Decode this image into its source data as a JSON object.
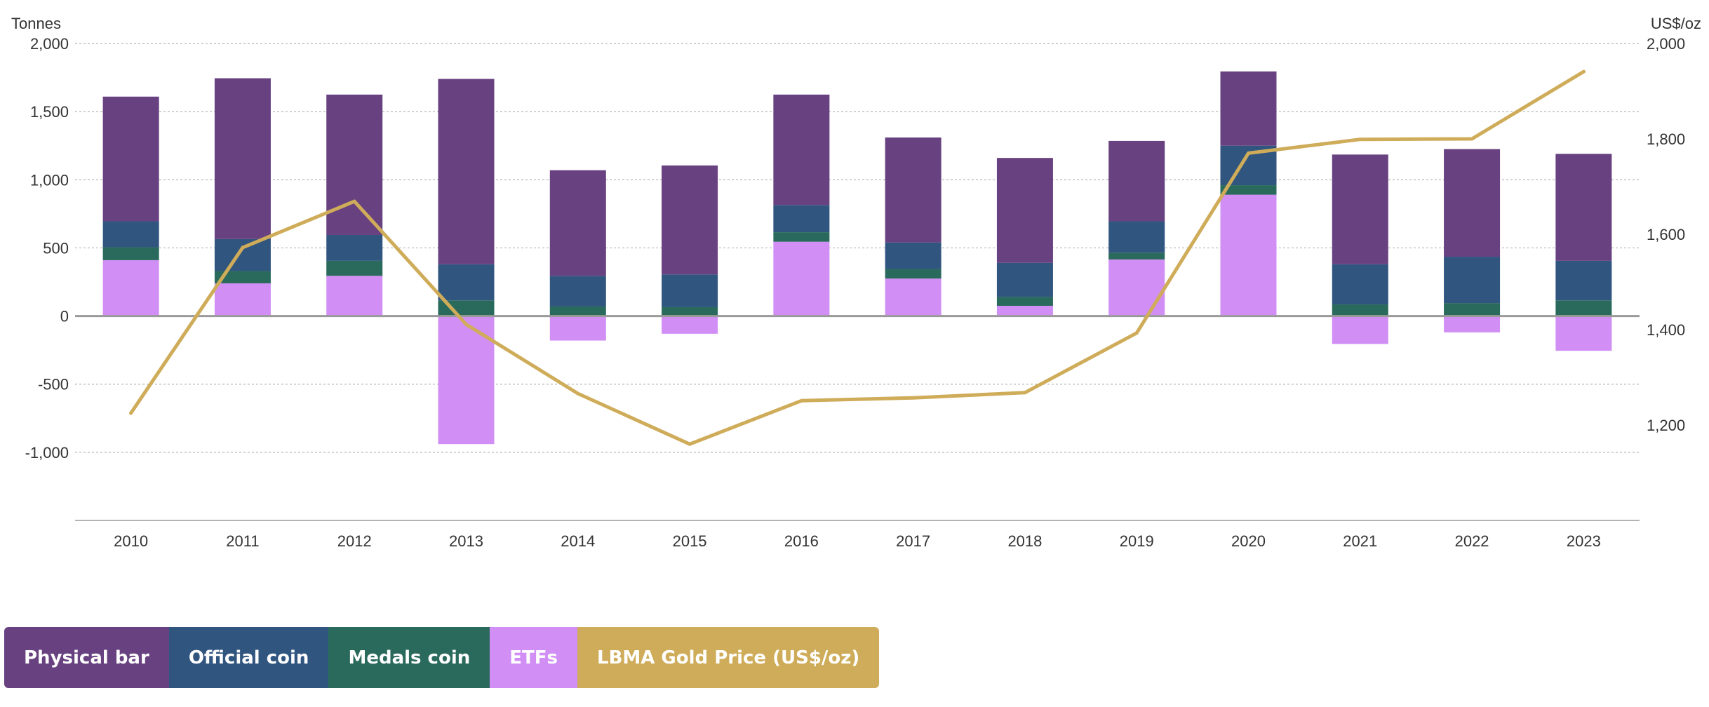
{
  "chart_data": {
    "type": "bar",
    "stacked": true,
    "categories": [
      "2010",
      "2011",
      "2012",
      "2013",
      "2014",
      "2015",
      "2016",
      "2017",
      "2018",
      "2019",
      "2020",
      "2021",
      "2022",
      "2023"
    ],
    "series": [
      {
        "name": "ETFs",
        "color": "#d18ff5",
        "values": [
          410,
          240,
          295,
          -940,
          -180,
          -130,
          545,
          275,
          75,
          415,
          890,
          -205,
          -120,
          -255
        ]
      },
      {
        "name": "Medals coin",
        "color": "#2a6a5c",
        "values": [
          95,
          90,
          110,
          115,
          70,
          65,
          70,
          70,
          65,
          50,
          70,
          85,
          95,
          115
        ]
      },
      {
        "name": "Official coin",
        "color": "#30557f",
        "values": [
          190,
          235,
          190,
          265,
          225,
          240,
          200,
          195,
          250,
          230,
          290,
          295,
          340,
          290
        ]
      },
      {
        "name": "Physical bar",
        "color": "#684180",
        "values": [
          915,
          1180,
          1030,
          1360,
          775,
          800,
          810,
          770,
          770,
          590,
          545,
          805,
          790,
          785
        ]
      }
    ],
    "line": {
      "name": "LBMA Gold Price (US$/oz)",
      "color": "#cfac59",
      "values": [
        1225,
        1572,
        1669,
        1411,
        1266,
        1160,
        1251,
        1257,
        1268,
        1393,
        1770,
        1799,
        1800,
        1941
      ]
    },
    "y_left": {
      "label": "Tonnes",
      "min": -1500,
      "max": 2000,
      "ticks": [
        2000,
        1500,
        1000,
        500,
        0,
        -500,
        -1000
      ],
      "tick_labels": [
        "2,000",
        "1,500",
        "1,000",
        "500",
        "0",
        "-500",
        "-1,000"
      ]
    },
    "y_right": {
      "label": "US$/oz",
      "min": 1000,
      "max": 2000,
      "ticks": [
        2000,
        1800,
        1600,
        1400,
        1200
      ],
      "tick_labels": [
        "2,000",
        "1,800",
        "1,600",
        "1,400",
        "1,200"
      ]
    },
    "grid": true,
    "legend_position": "bottom-left",
    "legend": [
      "Physical bar",
      "Official coin",
      "Medals coin",
      "ETFs",
      "LBMA Gold Price (US$/oz)"
    ]
  }
}
